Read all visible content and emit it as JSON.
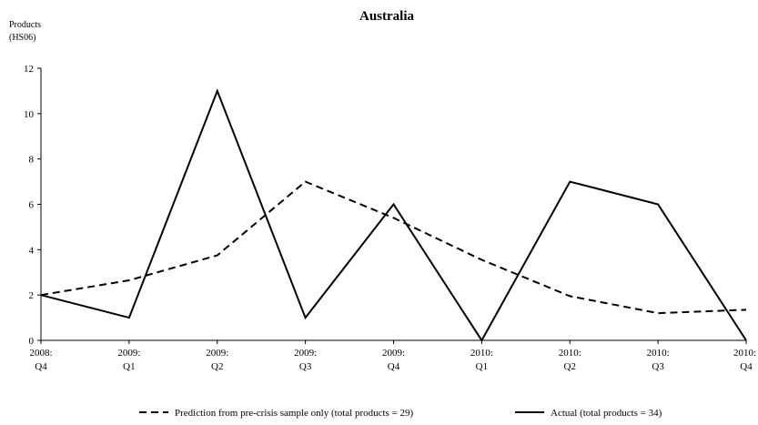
{
  "chart_data": {
    "type": "line",
    "title": "Australia",
    "ylabel": [
      "Products",
      "(HS06)"
    ],
    "xlabel": "",
    "ylim": [
      0,
      12
    ],
    "yticks": [
      0,
      2,
      4,
      6,
      8,
      10,
      12
    ],
    "categories": [
      [
        "2008:",
        "Q4"
      ],
      [
        "2009:",
        "Q1"
      ],
      [
        "2009:",
        "Q2"
      ],
      [
        "2009:",
        "Q3"
      ],
      [
        "2009:",
        "Q4"
      ],
      [
        "2010:",
        "Q1"
      ],
      [
        "2010:",
        "Q2"
      ],
      [
        "2010:",
        "Q3"
      ],
      [
        "2010:",
        "Q4"
      ]
    ],
    "series": [
      {
        "name": "Prediction from pre-crisis sample only (total products = 29)",
        "line_style": "dashed",
        "color": "#000000",
        "values": [
          2.0,
          2.65,
          3.75,
          7.0,
          5.4,
          3.55,
          1.95,
          1.2,
          1.35
        ]
      },
      {
        "name": "Actual (total products = 34)",
        "line_style": "solid",
        "color": "#000000",
        "values": [
          2,
          1,
          11,
          1,
          6,
          0,
          7,
          6,
          0
        ]
      }
    ],
    "grid": false,
    "legend_position": "bottom"
  }
}
